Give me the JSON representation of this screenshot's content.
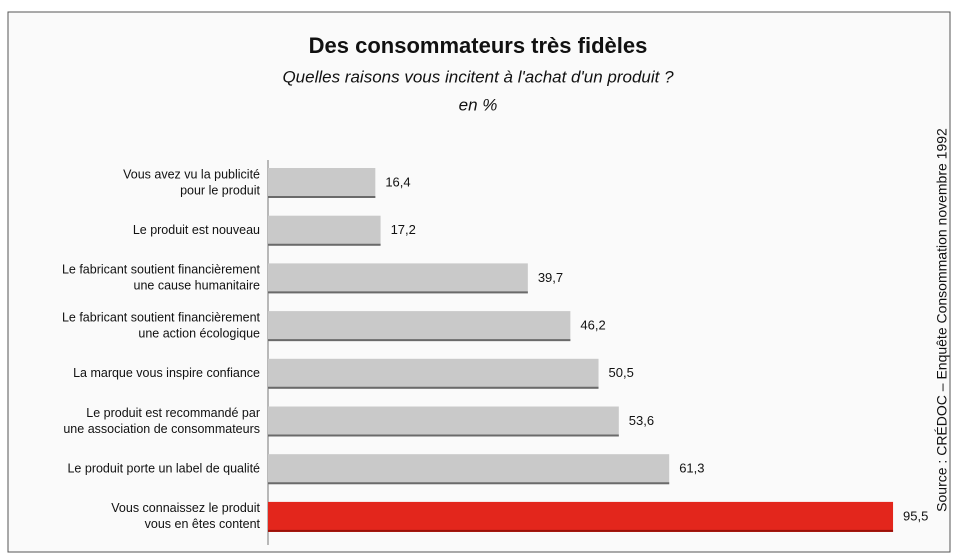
{
  "chart_data": {
    "type": "bar",
    "orientation": "horizontal",
    "title": "Des consommateurs très fidèles",
    "subtitle": "Quelles raisons vous incitent à l'achat d'un produit ?",
    "unit_note": "en %",
    "source": "Source : CRÉDOC – Enquête Consommation novembre 1992",
    "categories": [
      [
        "Vous avez vu la publicité",
        "pour le produit"
      ],
      [
        "Le produit est nouveau"
      ],
      [
        "Le fabricant soutient financièrement",
        "une cause humanitaire"
      ],
      [
        "Le fabricant soutient financièrement",
        "une action écologique"
      ],
      [
        "La marque vous inspire confiance"
      ],
      [
        "Le produit est recommandé par",
        "une association de consommateurs"
      ],
      [
        "Le produit porte un label de qualité"
      ],
      [
        "Vous connaissez le produit",
        "vous en êtes content"
      ]
    ],
    "values": [
      16.4,
      17.2,
      39.7,
      46.2,
      50.5,
      53.6,
      61.3,
      95.5
    ],
    "value_labels": [
      "16,4",
      "17,2",
      "39,7",
      "46,2",
      "50,5",
      "53,6",
      "61,3",
      "95,5"
    ],
    "colors": [
      "#c9c9c9",
      "#c9c9c9",
      "#c9c9c9",
      "#c9c9c9",
      "#c9c9c9",
      "#c9c9c9",
      "#c9c9c9",
      "#e3261c"
    ]
  }
}
